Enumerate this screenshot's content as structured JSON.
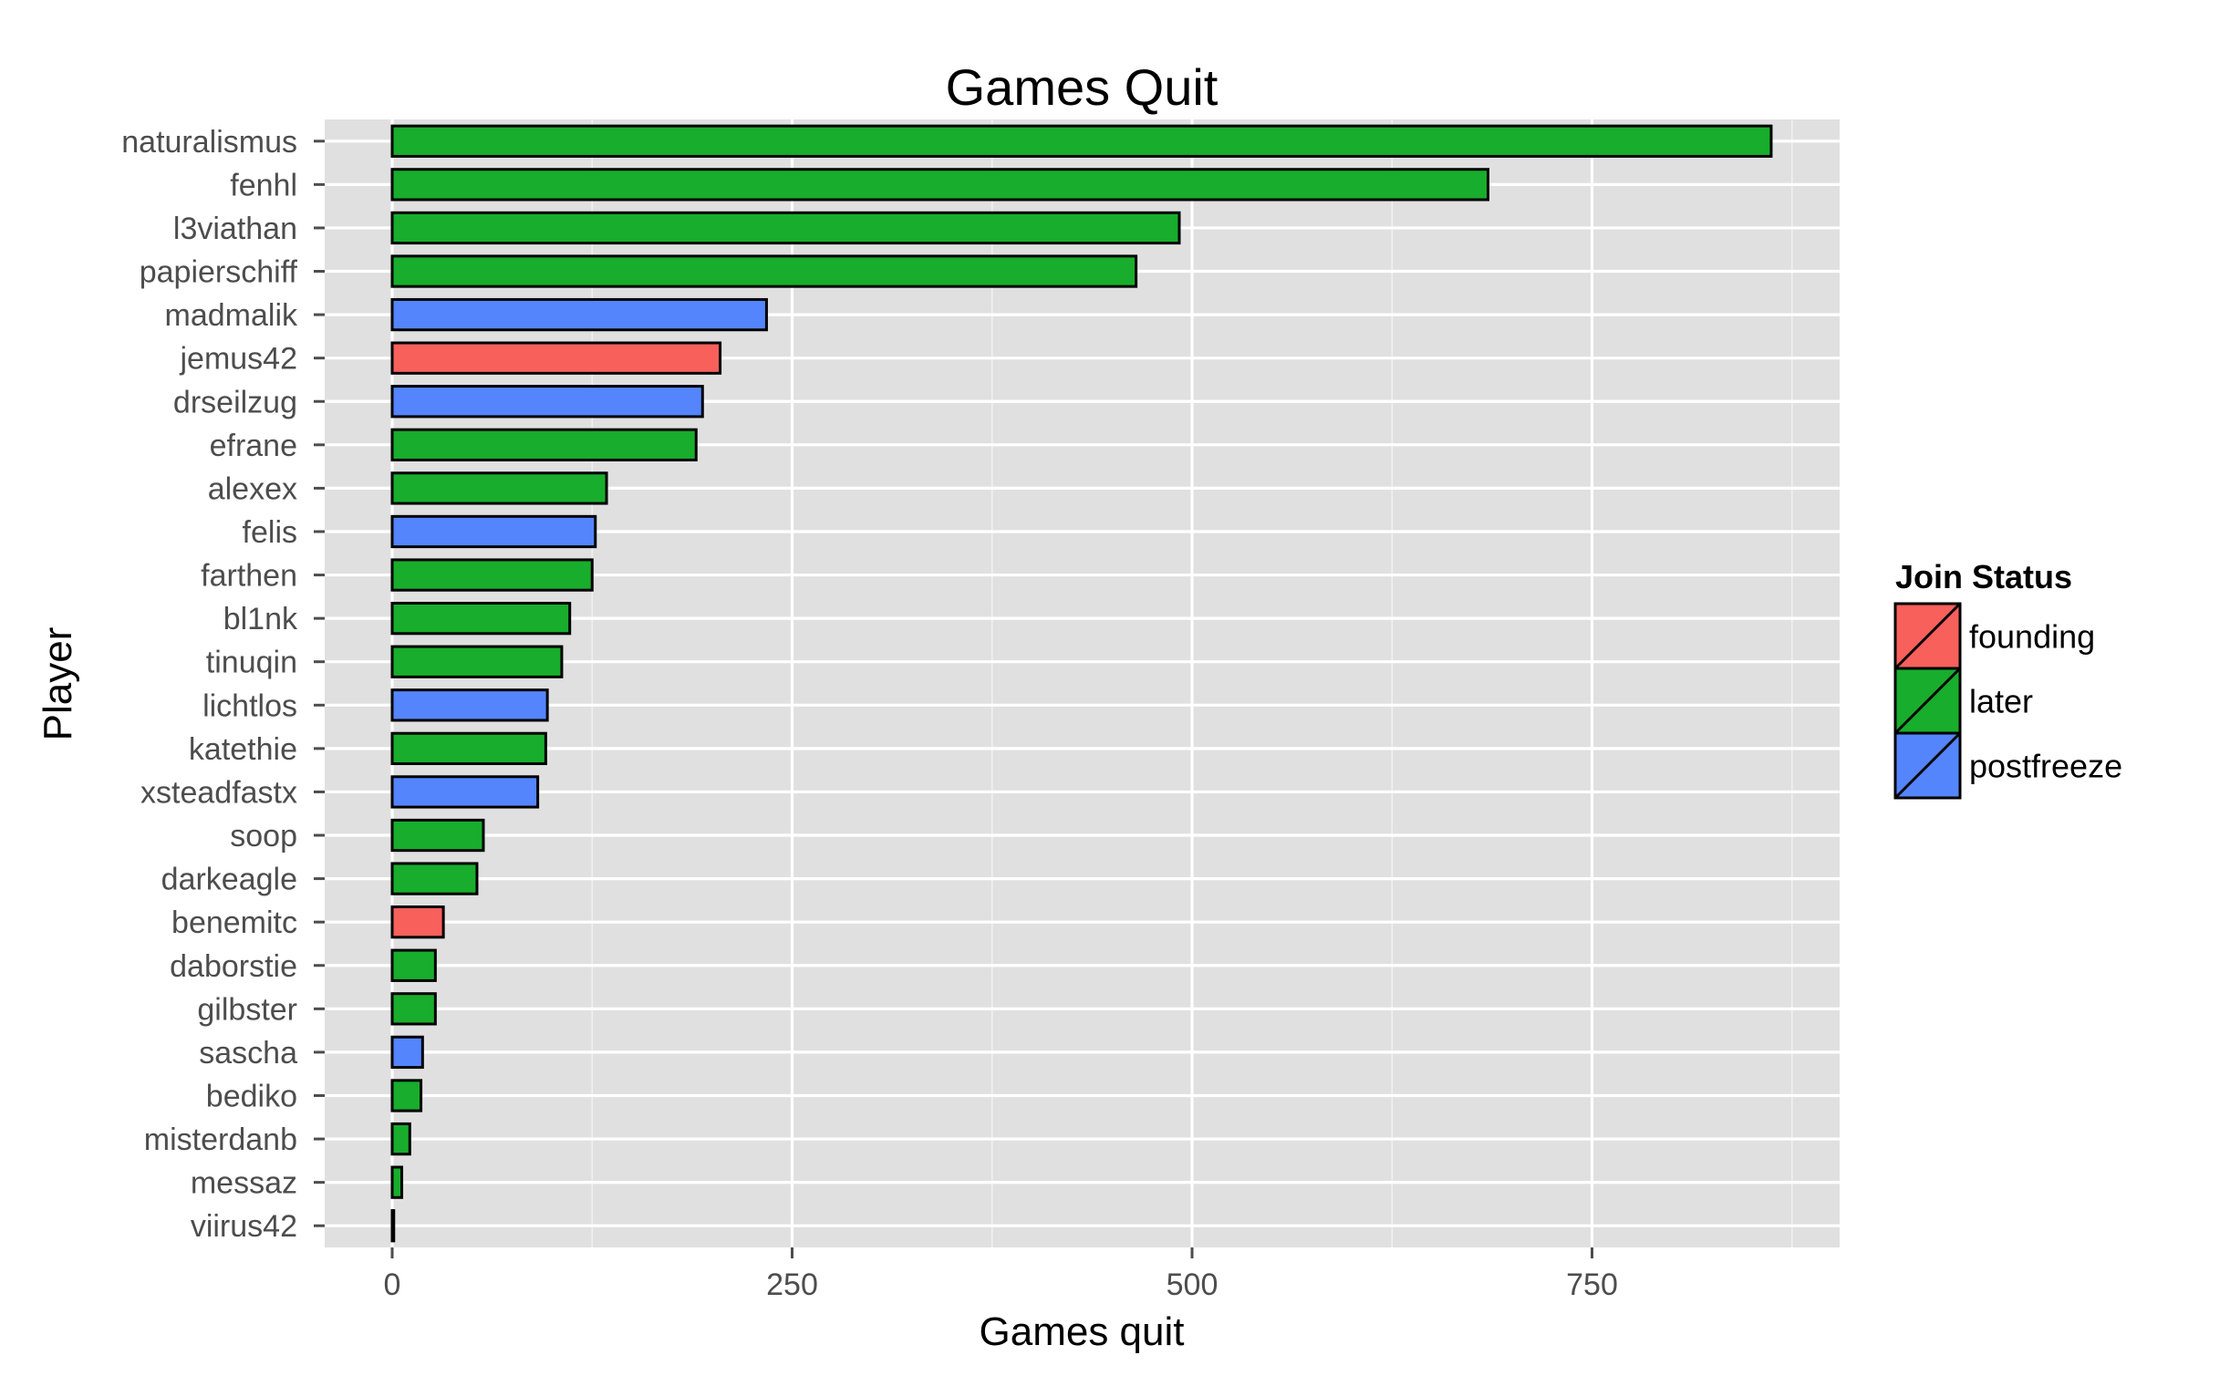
{
  "chart_data": {
    "type": "bar",
    "orientation": "horizontal",
    "title": "Games Quit",
    "xlabel": "Games quit",
    "ylabel": "Player",
    "xlim": [
      0,
      900
    ],
    "x_ticks": [
      0,
      250,
      500,
      750
    ],
    "grid": true,
    "legend": {
      "title": "Join Status",
      "placement": "right",
      "entries": [
        {
          "name": "founding",
          "color": "#f8605c"
        },
        {
          "name": "later",
          "color": "#18ad2c"
        },
        {
          "name": "postfreeze",
          "color": "#5485fc"
        }
      ]
    },
    "categories": [
      "naturalismus",
      "fenhl",
      "l3viathan",
      "papierschiff",
      "madmalik",
      "jemus42",
      "drseilzug",
      "efrane",
      "alexex",
      "felis",
      "farthen",
      "bl1nk",
      "tinuqin",
      "lichtlos",
      "katethie",
      "xsteadfastx",
      "soop",
      "darkeagle",
      "benemitc",
      "daborstie",
      "gilbster",
      "sascha",
      "bediko",
      "misterdanb",
      "messaz",
      "viirus42"
    ],
    "values": [
      862,
      685,
      492,
      465,
      234,
      205,
      194,
      190,
      134,
      127,
      125,
      111,
      106,
      97,
      96,
      91,
      57,
      53,
      32,
      27,
      27,
      19,
      18,
      11,
      6,
      1
    ],
    "groups": [
      "later",
      "later",
      "later",
      "later",
      "postfreeze",
      "founding",
      "postfreeze",
      "later",
      "later",
      "postfreeze",
      "later",
      "later",
      "later",
      "postfreeze",
      "later",
      "postfreeze",
      "later",
      "later",
      "founding",
      "later",
      "later",
      "postfreeze",
      "later",
      "later",
      "later",
      "later"
    ]
  }
}
